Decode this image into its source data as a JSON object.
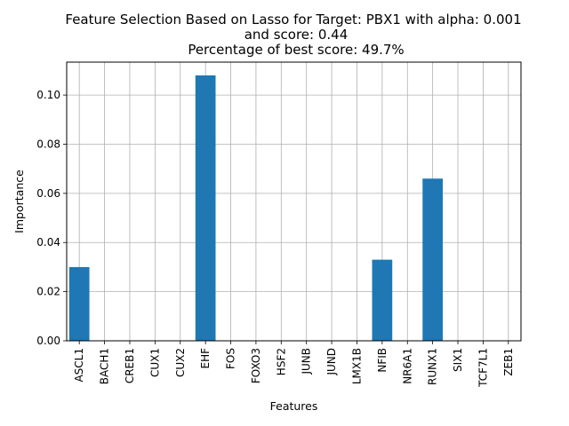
{
  "chart_data": {
    "type": "bar",
    "title_lines": [
      "Feature Selection Based on Lasso for Target: PBX1 with alpha: 0.001",
      "and score: 0.44",
      "Percentage of best score: 49.7%"
    ],
    "xlabel": "Features",
    "ylabel": "Importance",
    "categories": [
      "ASCL1",
      "BACH1",
      "CREB1",
      "CUX1",
      "CUX2",
      "EHF",
      "FOS",
      "FOXO3",
      "HSF2",
      "JUNB",
      "JUND",
      "LMX1B",
      "NFIB",
      "NR6A1",
      "RUNX1",
      "SIX1",
      "TCF7L1",
      "ZEB1"
    ],
    "values": [
      0.03,
      0.0,
      0.0,
      0.0,
      0.0,
      0.108,
      0.0,
      0.0,
      0.0,
      0.0,
      0.0,
      0.0,
      0.033,
      0.0,
      0.066,
      0.0,
      0.0,
      0.0
    ],
    "ylim": [
      0,
      0.1134
    ],
    "yticks": [
      0.0,
      0.02,
      0.04,
      0.06,
      0.08,
      0.1
    ],
    "ytick_labels": [
      "0.00",
      "0.02",
      "0.04",
      "0.06",
      "0.08",
      "0.10"
    ],
    "grid": true,
    "bar_color": "#1f77b4"
  }
}
